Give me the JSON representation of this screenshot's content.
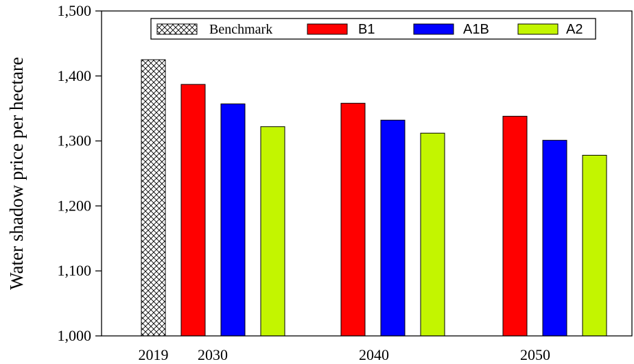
{
  "chart_data": {
    "type": "bar",
    "ylabel": "Water shadow price per hectare",
    "ylim": [
      1000,
      1500
    ],
    "yticks": [
      1000,
      1100,
      1200,
      1300,
      1400,
      1500
    ],
    "ytick_labels": [
      "1,000",
      "1,100",
      "1,200",
      "1,300",
      "1,400",
      "1,500"
    ],
    "legend_position": "top",
    "benchmark": {
      "name": "Benchmark",
      "category": "2019",
      "value": 1425,
      "pattern": "crosshatch"
    },
    "categories": [
      "2030",
      "2040",
      "2050"
    ],
    "series": [
      {
        "name": "B1",
        "color": "#ff0000",
        "values": [
          1387,
          1358,
          1338
        ]
      },
      {
        "name": "A1B",
        "color": "#0000ff",
        "values": [
          1357,
          1332,
          1301
        ]
      },
      {
        "name": "A2",
        "color": "#c3f500",
        "values": [
          1322,
          1312,
          1278
        ]
      }
    ]
  }
}
